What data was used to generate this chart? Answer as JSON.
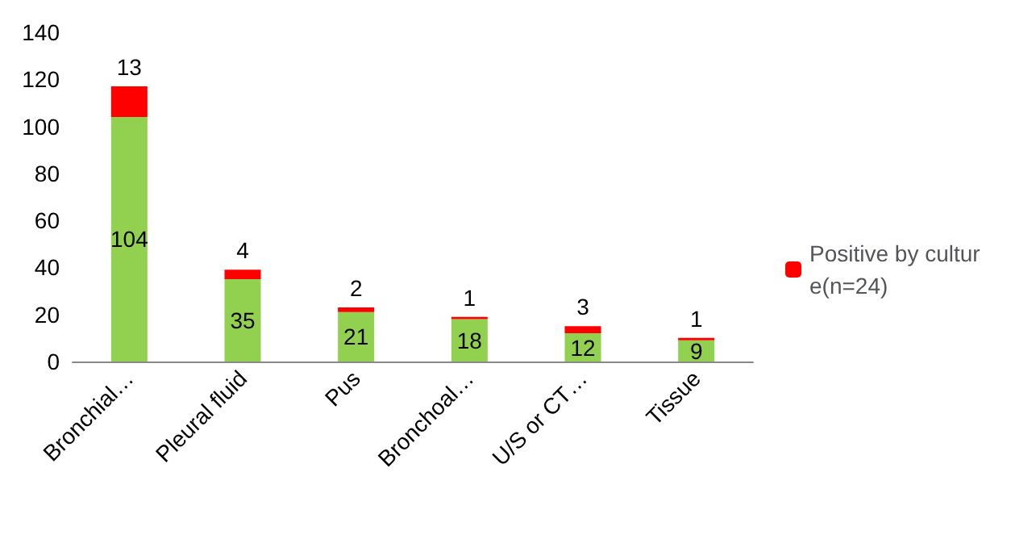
{
  "chart_data": {
    "type": "bar",
    "stacked": true,
    "categories": [
      "Bronchial…",
      "Pleural fluid",
      "Pus",
      "Bronchoal…",
      "U/S or CT…",
      "Tissue"
    ],
    "series": [
      {
        "color": "#92d050",
        "values": [
          104,
          35,
          21,
          18,
          12,
          9
        ]
      },
      {
        "name": "Positive by culture(n=24)",
        "color": "#ff0000",
        "values": [
          13,
          4,
          2,
          1,
          3,
          1
        ]
      }
    ],
    "ylim": [
      0,
      140
    ],
    "yticks": [
      0,
      20,
      40,
      60,
      80,
      100,
      120,
      140
    ],
    "grid": false,
    "legend": "right",
    "data_labels": true
  }
}
